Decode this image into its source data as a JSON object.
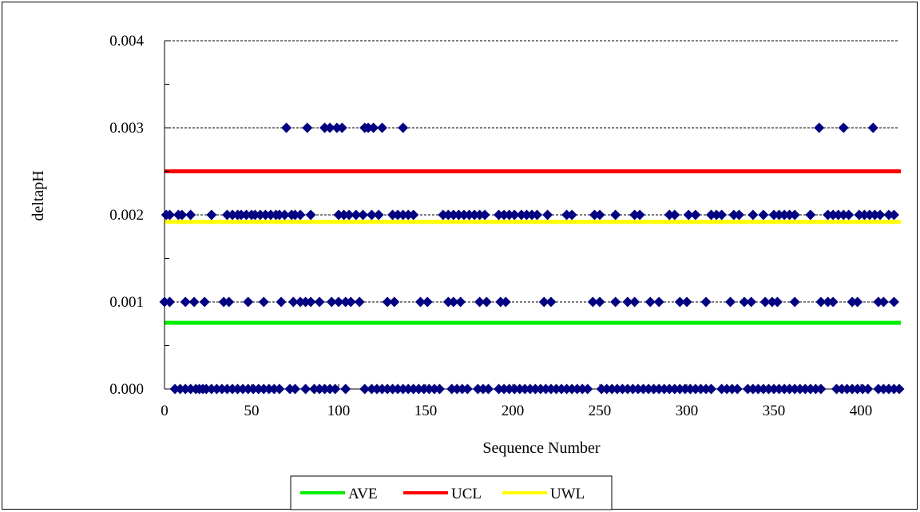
{
  "chart_data": {
    "type": "scatter",
    "title": "",
    "xlabel": "Sequence Number",
    "ylabel": "deltapH",
    "xlim": [
      0,
      422
    ],
    "ylim": [
      0,
      0.004
    ],
    "x_ticks": [
      0,
      50,
      100,
      150,
      200,
      250,
      300,
      350,
      400
    ],
    "x_tick_labels": [
      "0",
      "50",
      "100",
      "150",
      "200",
      "250",
      "300",
      "350",
      "400"
    ],
    "y_ticks": [
      0,
      0.001,
      0.002,
      0.003,
      0.004
    ],
    "y_tick_labels": [
      "0.000",
      "0.001",
      "0.002",
      "0.003",
      "0.004"
    ],
    "y_minor_step": 0.0005,
    "gridlines": "dashed horizontal at major y ticks",
    "legend": {
      "placement": "bottom-center"
    },
    "reference_lines": [
      {
        "name": "AVE",
        "value": 0.00076,
        "color": "#00ee00"
      },
      {
        "name": "UCL",
        "value": 0.0025,
        "color": "#ff0000"
      },
      {
        "name": "UWL",
        "value": 0.00192,
        "color": "#ffff00"
      }
    ],
    "series": [
      {
        "color": "#000080",
        "marker": "diamond",
        "points": [
          [
            70,
            0.003
          ],
          [
            82,
            0.003
          ],
          [
            92,
            0.003
          ],
          [
            95,
            0.003
          ],
          [
            99,
            0.003
          ],
          [
            102,
            0.003
          ],
          [
            115,
            0.003
          ],
          [
            117,
            0.003
          ],
          [
            120,
            0.003
          ],
          [
            125,
            0.003
          ],
          [
            137,
            0.003
          ],
          [
            376,
            0.003
          ],
          [
            390,
            0.003
          ],
          [
            407,
            0.003
          ],
          [
            1,
            0.002
          ],
          [
            3,
            0.002
          ],
          [
            8,
            0.002
          ],
          [
            10,
            0.002
          ],
          [
            15,
            0.002
          ],
          [
            27,
            0.002
          ],
          [
            36,
            0.002
          ],
          [
            39,
            0.002
          ],
          [
            42,
            0.002
          ],
          [
            44,
            0.002
          ],
          [
            47,
            0.002
          ],
          [
            50,
            0.002
          ],
          [
            52,
            0.002
          ],
          [
            55,
            0.002
          ],
          [
            58,
            0.002
          ],
          [
            61,
            0.002
          ],
          [
            64,
            0.002
          ],
          [
            66,
            0.002
          ],
          [
            69,
            0.002
          ],
          [
            73,
            0.002
          ],
          [
            75,
            0.002
          ],
          [
            78,
            0.002
          ],
          [
            84,
            0.002
          ],
          [
            100,
            0.002
          ],
          [
            103,
            0.002
          ],
          [
            106,
            0.002
          ],
          [
            110,
            0.002
          ],
          [
            114,
            0.002
          ],
          [
            119,
            0.002
          ],
          [
            123,
            0.002
          ],
          [
            131,
            0.002
          ],
          [
            134,
            0.002
          ],
          [
            137,
            0.002
          ],
          [
            140,
            0.002
          ],
          [
            143,
            0.002
          ],
          [
            160,
            0.002
          ],
          [
            163,
            0.002
          ],
          [
            166,
            0.002
          ],
          [
            169,
            0.002
          ],
          [
            172,
            0.002
          ],
          [
            175,
            0.002
          ],
          [
            178,
            0.002
          ],
          [
            181,
            0.002
          ],
          [
            184,
            0.002
          ],
          [
            192,
            0.002
          ],
          [
            195,
            0.002
          ],
          [
            198,
            0.002
          ],
          [
            201,
            0.002
          ],
          [
            205,
            0.002
          ],
          [
            208,
            0.002
          ],
          [
            211,
            0.002
          ],
          [
            214,
            0.002
          ],
          [
            220,
            0.002
          ],
          [
            231,
            0.002
          ],
          [
            234,
            0.002
          ],
          [
            247,
            0.002
          ],
          [
            250,
            0.002
          ],
          [
            259,
            0.002
          ],
          [
            270,
            0.002
          ],
          [
            273,
            0.002
          ],
          [
            290,
            0.002
          ],
          [
            293,
            0.002
          ],
          [
            301,
            0.002
          ],
          [
            305,
            0.002
          ],
          [
            314,
            0.002
          ],
          [
            317,
            0.002
          ],
          [
            320,
            0.002
          ],
          [
            327,
            0.002
          ],
          [
            330,
            0.002
          ],
          [
            338,
            0.002
          ],
          [
            344,
            0.002
          ],
          [
            350,
            0.002
          ],
          [
            353,
            0.002
          ],
          [
            356,
            0.002
          ],
          [
            359,
            0.002
          ],
          [
            362,
            0.002
          ],
          [
            371,
            0.002
          ],
          [
            381,
            0.002
          ],
          [
            384,
            0.002
          ],
          [
            387,
            0.002
          ],
          [
            390,
            0.002
          ],
          [
            393,
            0.002
          ],
          [
            399,
            0.002
          ],
          [
            402,
            0.002
          ],
          [
            405,
            0.002
          ],
          [
            408,
            0.002
          ],
          [
            411,
            0.002
          ],
          [
            416,
            0.002
          ],
          [
            419,
            0.002
          ],
          [
            0,
            0.001
          ],
          [
            3,
            0.001
          ],
          [
            12,
            0.001
          ],
          [
            17,
            0.001
          ],
          [
            23,
            0.001
          ],
          [
            34,
            0.001
          ],
          [
            37,
            0.001
          ],
          [
            48,
            0.001
          ],
          [
            57,
            0.001
          ],
          [
            67,
            0.001
          ],
          [
            74,
            0.001
          ],
          [
            78,
            0.001
          ],
          [
            81,
            0.001
          ],
          [
            84,
            0.001
          ],
          [
            89,
            0.001
          ],
          [
            96,
            0.001
          ],
          [
            100,
            0.001
          ],
          [
            104,
            0.001
          ],
          [
            107,
            0.001
          ],
          [
            112,
            0.001
          ],
          [
            128,
            0.001
          ],
          [
            132,
            0.001
          ],
          [
            147,
            0.001
          ],
          [
            151,
            0.001
          ],
          [
            163,
            0.001
          ],
          [
            166,
            0.001
          ],
          [
            170,
            0.001
          ],
          [
            181,
            0.001
          ],
          [
            185,
            0.001
          ],
          [
            193,
            0.001
          ],
          [
            196,
            0.001
          ],
          [
            218,
            0.001
          ],
          [
            222,
            0.001
          ],
          [
            246,
            0.001
          ],
          [
            250,
            0.001
          ],
          [
            259,
            0.001
          ],
          [
            266,
            0.001
          ],
          [
            270,
            0.001
          ],
          [
            279,
            0.001
          ],
          [
            284,
            0.001
          ],
          [
            296,
            0.001
          ],
          [
            300,
            0.001
          ],
          [
            311,
            0.001
          ],
          [
            325,
            0.001
          ],
          [
            333,
            0.001
          ],
          [
            337,
            0.001
          ],
          [
            345,
            0.001
          ],
          [
            349,
            0.001
          ],
          [
            352,
            0.001
          ],
          [
            362,
            0.001
          ],
          [
            377,
            0.001
          ],
          [
            381,
            0.001
          ],
          [
            384,
            0.001
          ],
          [
            395,
            0.001
          ],
          [
            398,
            0.001
          ],
          [
            410,
            0.001
          ],
          [
            413,
            0.001
          ],
          [
            419,
            0.001
          ],
          [
            6,
            0
          ],
          [
            9,
            0
          ],
          [
            12,
            0
          ],
          [
            15,
            0
          ],
          [
            18,
            0
          ],
          [
            20,
            0
          ],
          [
            22,
            0
          ],
          [
            24,
            0
          ],
          [
            27,
            0
          ],
          [
            30,
            0
          ],
          [
            33,
            0
          ],
          [
            36,
            0
          ],
          [
            39,
            0
          ],
          [
            42,
            0
          ],
          [
            45,
            0
          ],
          [
            48,
            0
          ],
          [
            51,
            0
          ],
          [
            54,
            0
          ],
          [
            57,
            0
          ],
          [
            60,
            0
          ],
          [
            63,
            0
          ],
          [
            66,
            0
          ],
          [
            72,
            0
          ],
          [
            75,
            0
          ],
          [
            81,
            0
          ],
          [
            86,
            0
          ],
          [
            89,
            0
          ],
          [
            92,
            0
          ],
          [
            95,
            0
          ],
          [
            98,
            0
          ],
          [
            104,
            0
          ],
          [
            115,
            0
          ],
          [
            119,
            0
          ],
          [
            122,
            0
          ],
          [
            125,
            0
          ],
          [
            128,
            0
          ],
          [
            131,
            0
          ],
          [
            134,
            0
          ],
          [
            137,
            0
          ],
          [
            140,
            0
          ],
          [
            143,
            0
          ],
          [
            146,
            0
          ],
          [
            149,
            0
          ],
          [
            152,
            0
          ],
          [
            155,
            0
          ],
          [
            158,
            0
          ],
          [
            165,
            0
          ],
          [
            168,
            0
          ],
          [
            171,
            0
          ],
          [
            174,
            0
          ],
          [
            180,
            0
          ],
          [
            183,
            0
          ],
          [
            186,
            0
          ],
          [
            192,
            0
          ],
          [
            195,
            0
          ],
          [
            198,
            0
          ],
          [
            201,
            0
          ],
          [
            204,
            0
          ],
          [
            207,
            0
          ],
          [
            210,
            0
          ],
          [
            213,
            0
          ],
          [
            216,
            0
          ],
          [
            219,
            0
          ],
          [
            222,
            0
          ],
          [
            225,
            0
          ],
          [
            228,
            0
          ],
          [
            231,
            0
          ],
          [
            234,
            0
          ],
          [
            237,
            0
          ],
          [
            240,
            0
          ],
          [
            243,
            0
          ],
          [
            251,
            0
          ],
          [
            254,
            0
          ],
          [
            257,
            0
          ],
          [
            260,
            0
          ],
          [
            263,
            0
          ],
          [
            266,
            0
          ],
          [
            269,
            0
          ],
          [
            272,
            0
          ],
          [
            275,
            0
          ],
          [
            278,
            0
          ],
          [
            281,
            0
          ],
          [
            284,
            0
          ],
          [
            287,
            0
          ],
          [
            290,
            0
          ],
          [
            293,
            0
          ],
          [
            296,
            0
          ],
          [
            299,
            0
          ],
          [
            302,
            0
          ],
          [
            305,
            0
          ],
          [
            308,
            0
          ],
          [
            311,
            0
          ],
          [
            314,
            0
          ],
          [
            320,
            0
          ],
          [
            323,
            0
          ],
          [
            326,
            0
          ],
          [
            329,
            0
          ],
          [
            335,
            0
          ],
          [
            338,
            0
          ],
          [
            341,
            0
          ],
          [
            344,
            0
          ],
          [
            347,
            0
          ],
          [
            350,
            0
          ],
          [
            353,
            0
          ],
          [
            356,
            0
          ],
          [
            359,
            0
          ],
          [
            362,
            0
          ],
          [
            365,
            0
          ],
          [
            368,
            0
          ],
          [
            371,
            0
          ],
          [
            374,
            0
          ],
          [
            377,
            0
          ],
          [
            386,
            0
          ],
          [
            389,
            0
          ],
          [
            392,
            0
          ],
          [
            395,
            0
          ],
          [
            398,
            0
          ],
          [
            401,
            0
          ],
          [
            404,
            0
          ],
          [
            410,
            0
          ],
          [
            413,
            0
          ],
          [
            416,
            0
          ],
          [
            419,
            0
          ],
          [
            422,
            0
          ]
        ]
      }
    ]
  }
}
